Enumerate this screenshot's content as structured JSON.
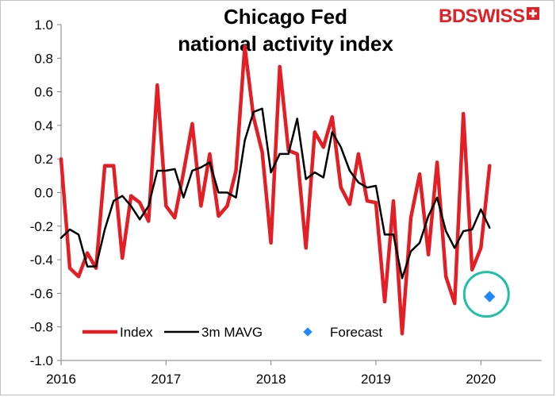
{
  "brand": {
    "name_part1": "BD",
    "name_part2": "SWISS",
    "cross_color": "#e31e24"
  },
  "chart_data": {
    "type": "line",
    "title_lines": [
      "Chicago Fed",
      "national activity index"
    ],
    "ylim": [
      -1.0,
      1.0
    ],
    "y_ticks": [
      1.0,
      0.8,
      0.6,
      0.4,
      0.2,
      0.0,
      -0.2,
      -0.4,
      -0.6,
      -0.8,
      -1.0
    ],
    "y_tick_labels": [
      "1.0",
      "0.8",
      "0.6",
      "0.4",
      "0.2",
      "0.0",
      "-0.2",
      "-0.4",
      "-0.6",
      "-0.8",
      "-1.0"
    ],
    "x_ticks": [
      2016,
      2017,
      2018,
      2019,
      2020
    ],
    "x_tick_labels": [
      "2016",
      "2017",
      "2018",
      "2019",
      "2020"
    ],
    "x_start": "2016-01",
    "grid": false,
    "legend_position": "bottom-left",
    "series": [
      {
        "name": "Index",
        "color": "#e31e24",
        "style": "line",
        "values": [
          0.2,
          -0.45,
          -0.5,
          -0.36,
          -0.45,
          0.16,
          0.16,
          -0.39,
          -0.02,
          -0.06,
          -0.17,
          0.64,
          -0.08,
          -0.15,
          0.12,
          0.41,
          -0.08,
          0.23,
          -0.14,
          -0.08,
          0.13,
          0.87,
          0.45,
          0.24,
          -0.3,
          0.75,
          0.25,
          0.23,
          -0.33,
          0.36,
          0.27,
          0.45,
          0.03,
          -0.07,
          0.23,
          -0.05,
          -0.06,
          -0.65,
          -0.05,
          -0.84,
          -0.15,
          0.11,
          -0.37,
          0.18,
          -0.5,
          -0.66,
          0.47,
          -0.46,
          -0.33,
          0.16
        ]
      },
      {
        "name": "3m MAVG",
        "color": "#000000",
        "style": "line",
        "values": [
          -0.27,
          -0.22,
          -0.25,
          -0.44,
          -0.44,
          -0.22,
          -0.05,
          -0.02,
          -0.08,
          -0.16,
          -0.08,
          0.13,
          0.13,
          0.14,
          -0.03,
          0.13,
          0.15,
          0.18,
          0.0,
          0.0,
          -0.03,
          0.31,
          0.48,
          0.5,
          0.12,
          0.23,
          0.23,
          0.44,
          0.08,
          0.12,
          0.09,
          0.36,
          0.27,
          0.13,
          0.06,
          0.03,
          0.04,
          -0.25,
          -0.25,
          -0.51,
          -0.35,
          -0.3,
          -0.14,
          -0.03,
          -0.23,
          -0.33,
          -0.23,
          -0.22,
          -0.1,
          -0.21
        ]
      },
      {
        "name": "Forecast",
        "color": "#1e88ff",
        "style": "marker",
        "points": [
          {
            "x": "2020-02",
            "y": -0.62
          }
        ]
      }
    ],
    "annotation": {
      "shape": "circle",
      "color": "#20c0a8",
      "around": "Forecast"
    }
  }
}
